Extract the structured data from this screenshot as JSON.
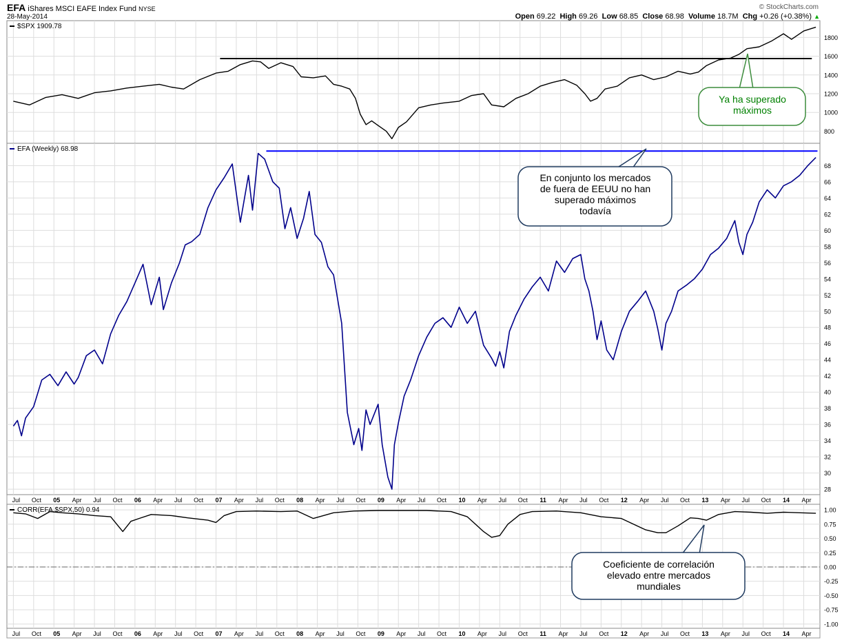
{
  "header": {
    "symbol": "EFA",
    "name": "iShares MSCI EAFE Index Fund",
    "exchange": "NYSE",
    "date": "28-May-2014",
    "brand": "© StockCharts.com",
    "open_label": "Open",
    "open": "69.22",
    "high_label": "High",
    "high": "69.26",
    "low_label": "Low",
    "low": "68.85",
    "close_label": "Close",
    "close": "68.98",
    "volume_label": "Volume",
    "volume": "18.7M",
    "chg_label": "Chg",
    "chg": "+0.26 (+0.38%)"
  },
  "colors": {
    "spx_line": "#000000",
    "efa_line": "#00008b",
    "efa_resistance": "#0000ff",
    "spx_resistance": "#000000",
    "callout_green_text": "#008000",
    "callout_green_border": "#3c8c3c",
    "callout_blue_border": "#1f3a5f",
    "grid": "#dddddd"
  },
  "annotations": {
    "spx_callout": "Ya ha superado\nmáximos",
    "efa_callout": "En conjunto los mercados\nde fuera de EEUU no han\nsuperado máximos\ntodavía",
    "corr_callout": "Coeficiente de correlación\nelevado entre mercados\nmundiales"
  },
  "chart_data": [
    {
      "type": "line",
      "legend": "$SPX 1909.78",
      "ylim": [
        700,
        1950
      ],
      "yticks": [
        800,
        1000,
        1200,
        1400,
        1600,
        1800
      ],
      "resistance": {
        "value": 1575,
        "from": 2007.05,
        "to": 2014.35
      },
      "x": [
        2004.5,
        2004.7,
        2004.9,
        2005.1,
        2005.3,
        2005.5,
        2005.7,
        2005.9,
        2006.1,
        2006.3,
        2006.45,
        2006.6,
        2006.8,
        2007.0,
        2007.15,
        2007.3,
        2007.45,
        2007.55,
        2007.65,
        2007.8,
        2007.95,
        2008.05,
        2008.2,
        2008.35,
        2008.45,
        2008.55,
        2008.65,
        2008.72,
        2008.78,
        2008.85,
        2008.92,
        2009.0,
        2009.1,
        2009.17,
        2009.25,
        2009.35,
        2009.5,
        2009.65,
        2009.8,
        2010.0,
        2010.15,
        2010.3,
        2010.4,
        2010.55,
        2010.7,
        2010.85,
        2011.0,
        2011.15,
        2011.3,
        2011.45,
        2011.55,
        2011.62,
        2011.7,
        2011.8,
        2011.95,
        2012.1,
        2012.25,
        2012.4,
        2012.55,
        2012.7,
        2012.85,
        2012.95,
        2013.05,
        2013.2,
        2013.35,
        2013.45,
        2013.55,
        2013.7,
        2013.85,
        2014.0,
        2014.1,
        2014.25,
        2014.4
      ],
      "y": [
        1120,
        1080,
        1160,
        1190,
        1150,
        1210,
        1230,
        1260,
        1280,
        1300,
        1270,
        1250,
        1350,
        1420,
        1440,
        1510,
        1550,
        1540,
        1470,
        1530,
        1490,
        1380,
        1370,
        1390,
        1300,
        1280,
        1250,
        1150,
        980,
        870,
        910,
        860,
        800,
        720,
        840,
        900,
        1050,
        1080,
        1100,
        1120,
        1180,
        1200,
        1080,
        1060,
        1150,
        1200,
        1280,
        1320,
        1350,
        1290,
        1200,
        1120,
        1150,
        1250,
        1280,
        1370,
        1400,
        1350,
        1380,
        1440,
        1410,
        1430,
        1500,
        1560,
        1580,
        1620,
        1680,
        1700,
        1760,
        1840,
        1780,
        1870,
        1910
      ]
    },
    {
      "type": "line",
      "legend": "EFA (Weekly) 68.98",
      "ylim": [
        27.5,
        70.5
      ],
      "yticks": [
        28,
        30,
        32,
        34,
        36,
        38,
        40,
        42,
        44,
        46,
        48,
        50,
        52,
        54,
        56,
        58,
        60,
        62,
        64,
        66,
        68
      ],
      "resistance": {
        "value": 69.8,
        "from": 2007.62,
        "to": 2014.42
      },
      "x": [
        2004.5,
        2004.55,
        2004.6,
        2004.65,
        2004.75,
        2004.85,
        2004.95,
        2005.05,
        2005.15,
        2005.25,
        2005.3,
        2005.4,
        2005.5,
        2005.6,
        2005.7,
        2005.8,
        2005.9,
        2006.0,
        2006.1,
        2006.2,
        2006.3,
        2006.35,
        2006.45,
        2006.55,
        2006.62,
        2006.7,
        2006.8,
        2006.9,
        2007.0,
        2007.1,
        2007.2,
        2007.3,
        2007.4,
        2007.45,
        2007.52,
        2007.6,
        2007.7,
        2007.78,
        2007.85,
        2007.92,
        2008.0,
        2008.08,
        2008.15,
        2008.22,
        2008.3,
        2008.38,
        2008.45,
        2008.55,
        2008.62,
        2008.7,
        2008.76,
        2008.8,
        2008.85,
        2008.9,
        2009.0,
        2009.05,
        2009.12,
        2009.17,
        2009.2,
        2009.25,
        2009.32,
        2009.4,
        2009.5,
        2009.6,
        2009.7,
        2009.8,
        2009.9,
        2010.0,
        2010.1,
        2010.2,
        2010.3,
        2010.4,
        2010.45,
        2010.5,
        2010.55,
        2010.62,
        2010.7,
        2010.8,
        2010.9,
        2011.0,
        2011.1,
        2011.2,
        2011.3,
        2011.4,
        2011.5,
        2011.55,
        2011.6,
        2011.65,
        2011.7,
        2011.75,
        2011.82,
        2011.9,
        2012.0,
        2012.1,
        2012.2,
        2012.3,
        2012.4,
        2012.45,
        2012.5,
        2012.55,
        2012.62,
        2012.7,
        2012.8,
        2012.9,
        2013.0,
        2013.1,
        2013.2,
        2013.3,
        2013.4,
        2013.45,
        2013.5,
        2013.55,
        2013.62,
        2013.7,
        2013.8,
        2013.9,
        2014.0,
        2014.1,
        2014.2,
        2014.3,
        2014.4
      ],
      "y": [
        35.8,
        36.5,
        34.6,
        36.8,
        38.2,
        41.5,
        42.2,
        40.8,
        42.5,
        41.0,
        41.8,
        44.5,
        45.2,
        43.5,
        47.2,
        49.5,
        51.2,
        53.5,
        55.8,
        50.8,
        54.2,
        50.2,
        53.5,
        56.0,
        58.2,
        58.6,
        59.5,
        62.8,
        65.0,
        66.5,
        68.2,
        61.0,
        66.8,
        62.5,
        69.5,
        68.8,
        66.0,
        65.2,
        60.2,
        62.8,
        59.0,
        61.5,
        64.8,
        59.5,
        58.5,
        55.5,
        54.5,
        48.5,
        37.5,
        33.5,
        35.5,
        32.8,
        37.8,
        36.0,
        38.5,
        33.5,
        29.5,
        28.0,
        33.5,
        36.2,
        39.5,
        41.5,
        44.5,
        46.8,
        48.5,
        49.2,
        48.0,
        50.5,
        48.5,
        50.0,
        45.8,
        44.2,
        43.2,
        45.0,
        43.0,
        47.5,
        49.5,
        51.5,
        53.0,
        54.2,
        52.5,
        56.2,
        54.8,
        56.5,
        57.0,
        54.0,
        52.5,
        50.0,
        46.5,
        48.8,
        45.2,
        44.0,
        47.5,
        50.0,
        51.2,
        52.5,
        50.0,
        47.8,
        45.2,
        48.5,
        50.0,
        52.5,
        53.2,
        54.0,
        55.2,
        57.0,
        57.8,
        59.0,
        61.2,
        58.5,
        57.0,
        59.5,
        61.0,
        63.5,
        65.0,
        64.0,
        65.5,
        66.0,
        66.8,
        68.0,
        69.0
      ]
    },
    {
      "type": "line",
      "legend": "CORR(EFA,$SPX,50) 0.94",
      "ylim": [
        -1.05,
        1.05
      ],
      "yticks": [
        1.0,
        0.75,
        0.5,
        0.25,
        0.0,
        -0.25,
        -0.5,
        -0.75,
        -1.0
      ],
      "x": [
        2004.5,
        2004.65,
        2004.8,
        2004.95,
        2005.1,
        2005.3,
        2005.5,
        2005.7,
        2005.85,
        2005.95,
        2006.05,
        2006.2,
        2006.45,
        2006.65,
        2006.9,
        2007.0,
        2007.1,
        2007.25,
        2007.5,
        2007.8,
        2008.0,
        2008.2,
        2008.45,
        2008.7,
        2009.0,
        2009.3,
        2009.6,
        2009.9,
        2010.1,
        2010.3,
        2010.4,
        2010.5,
        2010.6,
        2010.75,
        2010.9,
        2011.2,
        2011.5,
        2011.75,
        2012.0,
        2012.15,
        2012.3,
        2012.45,
        2012.55,
        2012.7,
        2012.85,
        2012.95,
        2013.05,
        2013.2,
        2013.4,
        2013.6,
        2013.8,
        2014.0,
        2014.2,
        2014.4
      ],
      "y": [
        0.95,
        0.93,
        0.85,
        0.97,
        0.95,
        0.93,
        0.9,
        0.88,
        0.62,
        0.8,
        0.85,
        0.92,
        0.9,
        0.86,
        0.82,
        0.78,
        0.9,
        0.97,
        0.98,
        0.97,
        0.98,
        0.85,
        0.95,
        0.98,
        0.99,
        0.99,
        0.99,
        0.97,
        0.88,
        0.62,
        0.52,
        0.55,
        0.75,
        0.92,
        0.97,
        0.98,
        0.95,
        0.88,
        0.85,
        0.75,
        0.65,
        0.6,
        0.6,
        0.72,
        0.86,
        0.85,
        0.82,
        0.92,
        0.97,
        0.96,
        0.94,
        0.96,
        0.95,
        0.94
      ]
    }
  ],
  "x_axis": {
    "labels": [
      {
        "t": "Jul",
        "x": 2004.5
      },
      {
        "t": "Oct",
        "x": 2004.75
      },
      {
        "t": "05",
        "x": 2005.0
      },
      {
        "t": "Apr",
        "x": 2005.25
      },
      {
        "t": "Jul",
        "x": 2005.5
      },
      {
        "t": "Oct",
        "x": 2005.75
      },
      {
        "t": "06",
        "x": 2006.0
      },
      {
        "t": "Apr",
        "x": 2006.25
      },
      {
        "t": "Jul",
        "x": 2006.5
      },
      {
        "t": "Oct",
        "x": 2006.75
      },
      {
        "t": "07",
        "x": 2007.0
      },
      {
        "t": "Apr",
        "x": 2007.25
      },
      {
        "t": "Jul",
        "x": 2007.5
      },
      {
        "t": "Oct",
        "x": 2007.75
      },
      {
        "t": "08",
        "x": 2008.0
      },
      {
        "t": "Apr",
        "x": 2008.25
      },
      {
        "t": "Jul",
        "x": 2008.5
      },
      {
        "t": "Oct",
        "x": 2008.75
      },
      {
        "t": "09",
        "x": 2009.0
      },
      {
        "t": "Apr",
        "x": 2009.25
      },
      {
        "t": "Jul",
        "x": 2009.5
      },
      {
        "t": "Oct",
        "x": 2009.75
      },
      {
        "t": "10",
        "x": 2010.0
      },
      {
        "t": "Apr",
        "x": 2010.25
      },
      {
        "t": "Jul",
        "x": 2010.5
      },
      {
        "t": "Oct",
        "x": 2010.75
      },
      {
        "t": "11",
        "x": 2011.0
      },
      {
        "t": "Apr",
        "x": 2011.25
      },
      {
        "t": "Jul",
        "x": 2011.5
      },
      {
        "t": "Oct",
        "x": 2011.75
      },
      {
        "t": "12",
        "x": 2012.0
      },
      {
        "t": "Apr",
        "x": 2012.25
      },
      {
        "t": "Jul",
        "x": 2012.5
      },
      {
        "t": "Oct",
        "x": 2012.75
      },
      {
        "t": "13",
        "x": 2013.0
      },
      {
        "t": "Apr",
        "x": 2013.25
      },
      {
        "t": "Jul",
        "x": 2013.5
      },
      {
        "t": "Oct",
        "x": 2013.75
      },
      {
        "t": "14",
        "x": 2014.0
      },
      {
        "t": "Apr",
        "x": 2014.25
      }
    ]
  }
}
